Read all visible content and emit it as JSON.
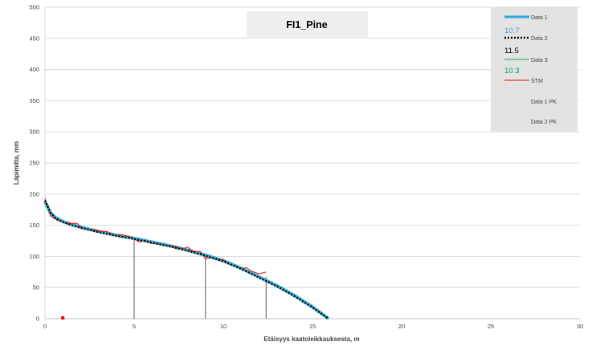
{
  "chart_data": {
    "type": "line",
    "title": "FI1_Pine",
    "xlabel": "Etäisyys kaatoleikkauksesta, m",
    "ylabel": "Läpimitta, mm",
    "xlim": [
      0,
      30
    ],
    "ylim": [
      0,
      500
    ],
    "xticks": [
      "0",
      "5",
      "10",
      "15",
      "20",
      "25",
      "30"
    ],
    "yticks": [
      "0",
      "50",
      "100",
      "150",
      "200",
      "250",
      "300",
      "350",
      "400",
      "450",
      "500"
    ],
    "grid": "horizontal",
    "legend_position": "top-right",
    "series": [
      {
        "name": "Data 1",
        "style": "solid-thick",
        "color": "#2fa6df",
        "value_label": "10.7",
        "value_color": "#5b9bd5",
        "x": [
          0,
          0.3,
          0.6,
          1,
          1.5,
          2,
          3,
          4,
          5,
          6,
          7,
          8,
          9,
          10,
          11,
          12,
          13,
          14,
          15,
          15.9
        ],
        "y": [
          188,
          170,
          162,
          156,
          151,
          147,
          140,
          134,
          129,
          123,
          117,
          110,
          102,
          93,
          81,
          67,
          53,
          37,
          19,
          0
        ]
      },
      {
        "name": "Data 2",
        "style": "dotted",
        "color": "#000000",
        "value_label": "11.5",
        "value_color": "#000000",
        "x": [
          0,
          0.3,
          0.6,
          1,
          1.5,
          2,
          3,
          4,
          5,
          6,
          7,
          8,
          9,
          10,
          11,
          12,
          13,
          14,
          15,
          15.9
        ],
        "y": [
          190,
          171,
          161,
          155,
          150,
          146,
          139,
          133,
          128,
          122,
          116,
          109,
          101,
          92,
          80,
          66,
          52,
          36,
          18,
          0
        ]
      },
      {
        "name": "Data 3",
        "style": "solid-thin",
        "color": "#3cb878",
        "value_label": "10.3",
        "value_color": "#00b050",
        "x": [
          0,
          0.3,
          0.6,
          1,
          1.5,
          2,
          3,
          4,
          5,
          6,
          7,
          8,
          9,
          10,
          11,
          12,
          13,
          14,
          15,
          15.9
        ],
        "y": [
          186,
          169,
          161,
          155,
          150,
          146,
          139,
          133,
          128,
          122,
          116,
          109,
          101,
          92,
          80,
          66,
          52,
          36,
          18,
          0
        ]
      },
      {
        "name": "STM",
        "style": "solid-thin",
        "color": "#ff0000",
        "x": [
          0,
          0.3,
          0.7,
          1,
          1.4,
          1.8,
          2.1,
          2.4,
          2.8,
          3.2,
          3.5,
          3.9,
          4.3,
          4.7,
          5.0,
          5.3,
          5.6,
          5.9,
          6.3,
          6.6,
          7.0,
          7.3,
          7.7,
          8.0,
          8.3,
          8.7,
          9.0,
          9.3,
          9.6,
          10.0,
          10.3,
          10.6,
          11.0,
          11.3,
          11.6,
          12.0,
          12.4
        ],
        "y": [
          193,
          165,
          158,
          155,
          153,
          153,
          145,
          143,
          143,
          140,
          140,
          133,
          135,
          132,
          128,
          123,
          126,
          121,
          121,
          118,
          117,
          116,
          112,
          115,
          108,
          108,
          96,
          98,
          95,
          95,
          88,
          85,
          80,
          82,
          76,
          72,
          75
        ]
      },
      {
        "name": "Data 1 PK",
        "style": "stems",
        "color": "#595959",
        "x": [
          5,
          9,
          12.4
        ],
        "y": [
          129,
          102,
          67
        ]
      },
      {
        "name": "Data 2 PK",
        "style": "markers",
        "color": "#ff0000",
        "x": [
          1.0
        ],
        "y": [
          0
        ]
      }
    ]
  }
}
